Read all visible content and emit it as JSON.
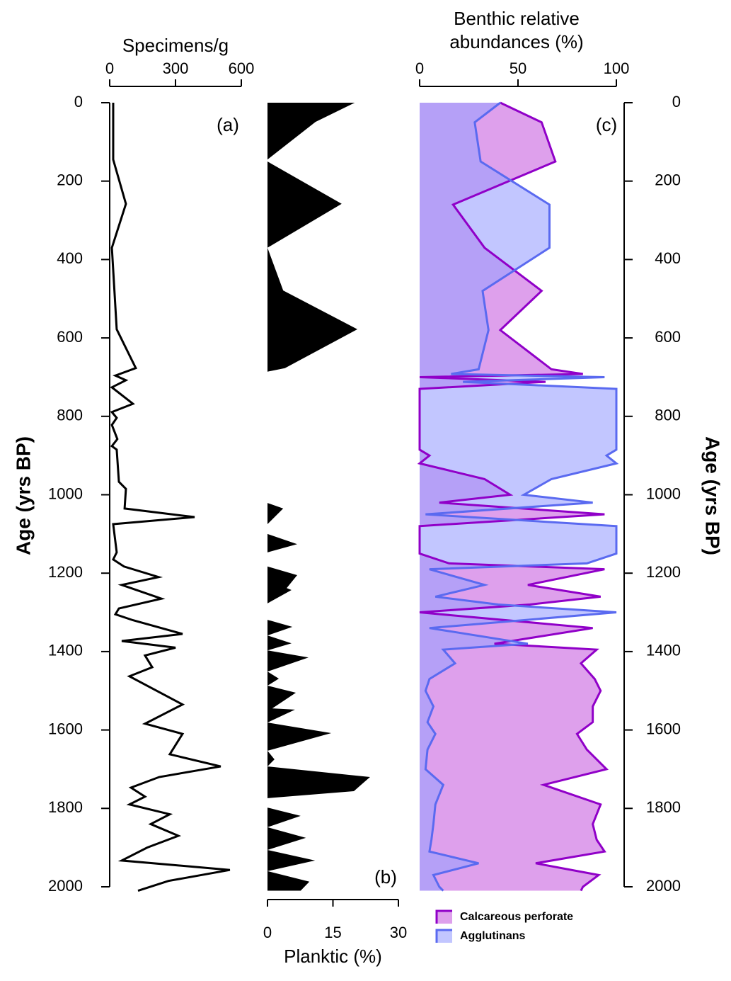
{
  "chart_data": [
    {
      "type": "line",
      "x_label": "Specimens/g",
      "panel_label": "(a)",
      "y_label": "Age (yrs BP)",
      "y_axis_position": "left",
      "x_axis_position": "top",
      "xlim": [
        0,
        600
      ],
      "xticks": [
        0,
        300,
        600
      ],
      "ylim": [
        0,
        2000
      ],
      "yticks": [
        0,
        200,
        400,
        600,
        800,
        1000,
        1200,
        1400,
        1600,
        1800,
        2000
      ],
      "series": [
        {
          "color": "#000000",
          "age": [
            0,
            145,
            258,
            370,
            578,
            677,
            696,
            708,
            726,
            768,
            789,
            804,
            822,
            858,
            876,
            885,
            967,
            985,
            1035,
            1057,
            1075,
            1147,
            1165,
            1183,
            1210,
            1230,
            1265,
            1290,
            1305,
            1320,
            1355,
            1373,
            1390,
            1410,
            1440,
            1463,
            1535,
            1584,
            1610,
            1662,
            1693,
            1720,
            1747,
            1770,
            1790,
            1815,
            1840,
            1870,
            1900,
            1933,
            1957,
            1985,
            2010
          ],
          "values": [
            16,
            16,
            74,
            10,
            32,
            119,
            26,
            74,
            10,
            106,
            10,
            32,
            10,
            35,
            10,
            32,
            42,
            74,
            68,
            387,
            16,
            32,
            16,
            65,
            223,
            55,
            236,
            42,
            26,
            106,
            332,
            55,
            300,
            161,
            194,
            90,
            332,
            161,
            332,
            274,
            506,
            226,
            97,
            161,
            90,
            274,
            187,
            313,
            171,
            55,
            548,
            268,
            129
          ]
        }
      ]
    },
    {
      "type": "area",
      "x_label": "Planktic (%)",
      "panel_label": "(b)",
      "x_axis_position": "bottom",
      "xlim": [
        0,
        30
      ],
      "xticks": [
        0,
        15,
        30
      ],
      "ylim": [
        0,
        2000
      ],
      "series": [
        {
          "color": "#000000",
          "age": [
            0,
            49,
            145,
            150,
            258,
            370,
            479,
            578,
            677,
            686,
            1021,
            1035,
            1075,
            1100,
            1126,
            1147,
            1183,
            1205,
            1238,
            1243,
            1277,
            1319,
            1337,
            1359,
            1379,
            1397,
            1415,
            1451,
            1469,
            1487,
            1505,
            1545,
            1548,
            1581,
            1608,
            1653,
            1675,
            1693,
            1720,
            1756,
            1774,
            1798,
            1819,
            1848,
            1875,
            1906,
            1933,
            1960,
            1987,
            2010
          ],
          "values": [
            20,
            11,
            0,
            0,
            17,
            0,
            3.6,
            20.6,
            4,
            0,
            0,
            3.6,
            0,
            0,
            6.8,
            0,
            0,
            6.8,
            4.4,
            5.5,
            0,
            0,
            5.7,
            0,
            5.5,
            0,
            9.4,
            0,
            2.6,
            0,
            6.5,
            1.1,
            6.3,
            0,
            14.6,
            0,
            1.6,
            0,
            23.5,
            19.8,
            0,
            0,
            7.6,
            0,
            8.8,
            0,
            10.9,
            0,
            9.6,
            7.6
          ]
        }
      ]
    },
    {
      "type": "area",
      "x_label": "Benthic relative abundances (%)",
      "panel_label": "(c)",
      "y_label": "Age (yrs BP)",
      "y_axis_position": "right",
      "x_axis_position": "top",
      "legend": "bottom-left",
      "xlim": [
        0,
        100
      ],
      "xticks": [
        0,
        50,
        100
      ],
      "ylim": [
        0,
        2000
      ],
      "yticks": [
        0,
        200,
        400,
        600,
        800,
        1000,
        1200,
        1400,
        1600,
        1800,
        2000
      ],
      "series": [
        {
          "name": "Calcareous perforate",
          "color": "#9000c8",
          "fill": "#c860e0",
          "age": [
            0,
            50,
            150,
            260,
            370,
            480,
            580,
            680,
            692,
            700,
            712,
            730,
            860,
            885,
            900,
            920,
            960,
            1000,
            1020,
            1050,
            1080,
            1150,
            1175,
            1190,
            1230,
            1260,
            1280,
            1300,
            1340,
            1380,
            1395,
            1430,
            1470,
            1500,
            1540,
            1580,
            1610,
            1650,
            1700,
            1740,
            1790,
            1840,
            1880,
            1910,
            1940,
            1970,
            2000,
            2010
          ],
          "values": [
            41,
            62,
            69,
            17,
            33,
            62,
            41,
            67,
            83,
            0,
            64,
            0,
            0,
            0,
            5,
            0,
            33,
            46,
            10,
            94,
            0,
            0,
            15,
            94,
            55,
            92,
            56,
            0,
            88,
            38,
            90,
            82,
            89,
            92,
            88,
            88,
            80,
            85,
            95,
            63,
            92,
            88,
            90,
            94,
            59,
            91,
            83,
            82
          ]
        },
        {
          "name": "Agglutinans",
          "color": "#5a6af0",
          "fill": "#9aa0ff",
          "age": [
            0,
            50,
            150,
            260,
            370,
            480,
            580,
            680,
            692,
            700,
            712,
            730,
            860,
            885,
            900,
            920,
            960,
            1000,
            1020,
            1050,
            1080,
            1150,
            1175,
            1190,
            1230,
            1260,
            1280,
            1300,
            1340,
            1380,
            1395,
            1430,
            1470,
            1500,
            1540,
            1580,
            1610,
            1650,
            1700,
            1740,
            1790,
            1840,
            1880,
            1910,
            1940,
            1970,
            2000,
            2010
          ],
          "values": [
            41,
            28,
            31,
            66,
            66,
            32,
            35,
            30,
            16,
            94,
            22,
            100,
            100,
            100,
            95,
            100,
            67,
            53,
            88,
            3,
            100,
            100,
            85,
            5,
            33,
            8,
            40,
            100,
            5,
            55,
            12,
            18,
            5,
            3,
            7,
            4,
            8,
            4,
            3,
            12,
            8,
            7,
            6,
            5,
            30,
            7,
            10,
            12
          ]
        }
      ]
    }
  ]
}
